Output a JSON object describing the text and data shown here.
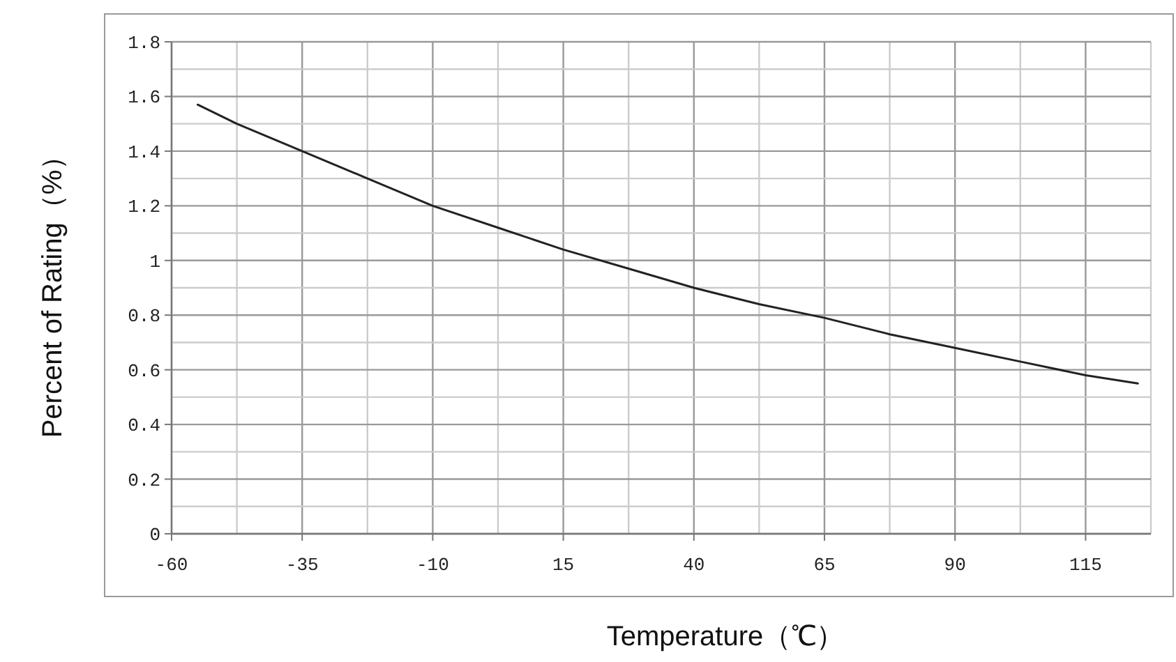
{
  "chart_data": {
    "type": "line",
    "xlabel": "Temperature（℃）",
    "ylabel": "Percent of Rating（%）",
    "xlim": [
      -60,
      127.5
    ],
    "ylim": [
      0,
      1.8
    ],
    "xticks": [
      -60,
      -35,
      -10,
      15,
      40,
      65,
      90,
      115
    ],
    "yticks": [
      0,
      0.2,
      0.4,
      0.6,
      0.8,
      1,
      1.2,
      1.4,
      1.6,
      1.8
    ],
    "grid": true,
    "marker": "none",
    "line_style": "solid",
    "series": [
      {
        "color": "#222222",
        "x": [
          -55,
          -47.5,
          -35,
          -22.5,
          -10,
          2.5,
          15,
          27.5,
          40,
          52.5,
          65,
          77.5,
          90,
          102.5,
          115,
          125
        ],
        "values": [
          1.57,
          1.5,
          1.4,
          1.3,
          1.2,
          1.12,
          1.04,
          0.97,
          0.9,
          0.84,
          0.79,
          0.73,
          0.68,
          0.63,
          0.58,
          0.55
        ]
      }
    ]
  }
}
